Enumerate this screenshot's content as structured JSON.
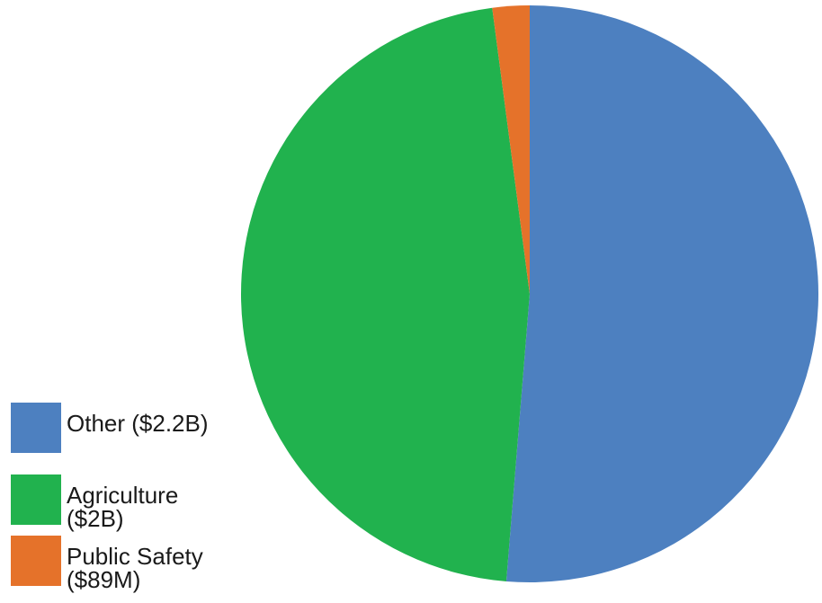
{
  "chart_data": {
    "type": "pie",
    "start_angle_deg": 0,
    "direction": "clockwise",
    "slices": [
      {
        "label": "Other ($2.2B)",
        "display_label": "Other ($2.2B)",
        "value": 2.2,
        "color": "#4d80c0"
      },
      {
        "label": "Agriculture ($2B)",
        "display_label": "Agriculture\n($2B)",
        "value": 2.0,
        "color": "#21b24e"
      },
      {
        "label": "Public Safety ($89M)",
        "display_label": "Public Safety\n($89M)",
        "value": 0.089,
        "color": "#e5722a"
      }
    ],
    "legend_position": "bottom-left"
  }
}
